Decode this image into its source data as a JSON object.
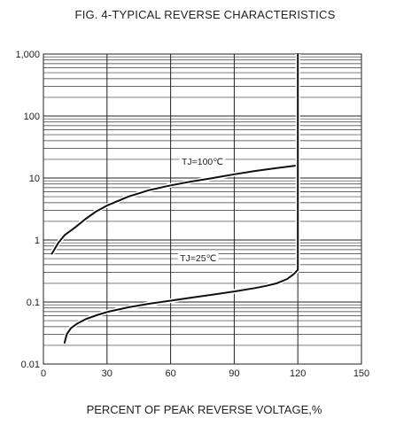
{
  "chart_data": {
    "type": "line",
    "title": "FIG. 4-TYPICAL REVERSE CHARACTERISTICS",
    "xlabel": "PERCENT OF PEAK REVERSE VOLTAGE,%",
    "ylabel": "",
    "x_scale": "linear",
    "y_scale": "log",
    "xlim": [
      0,
      150
    ],
    "ylim": [
      0.01,
      1000
    ],
    "x_ticks": [
      "0",
      "30",
      "60",
      "90",
      "120",
      "150"
    ],
    "y_ticks": [
      "0.01",
      "0.1",
      "1",
      "10",
      "100",
      "1,000"
    ],
    "grid": true,
    "series": [
      {
        "name": "TJ=100℃",
        "x": [
          4,
          7,
          10,
          15,
          20,
          25,
          30,
          40,
          50,
          60,
          70,
          80,
          90,
          100,
          110,
          120
        ],
        "y": [
          0.6,
          0.9,
          1.2,
          1.6,
          2.2,
          2.9,
          3.6,
          5.0,
          6.4,
          7.6,
          8.8,
          10,
          11.5,
          13,
          14.5,
          16
        ]
      },
      {
        "name": "TJ=25℃",
        "x": [
          10,
          11,
          13,
          16,
          20,
          25,
          30,
          40,
          50,
          60,
          70,
          80,
          90,
          100,
          105,
          110,
          115,
          118,
          120
        ],
        "y": [
          0.022,
          0.03,
          0.038,
          0.045,
          0.053,
          0.061,
          0.069,
          0.082,
          0.094,
          0.105,
          0.118,
          0.132,
          0.148,
          0.168,
          0.182,
          0.2,
          0.235,
          0.28,
          0.33
        ]
      },
      {
        "name": "",
        "x": [
          120,
          120
        ],
        "y": [
          0.33,
          1000
        ]
      }
    ],
    "annotations": [
      {
        "text": "TJ=100℃",
        "x": 75,
        "y": 18
      },
      {
        "text": "TJ=25℃",
        "x": 73,
        "y": 0.5
      }
    ]
  }
}
